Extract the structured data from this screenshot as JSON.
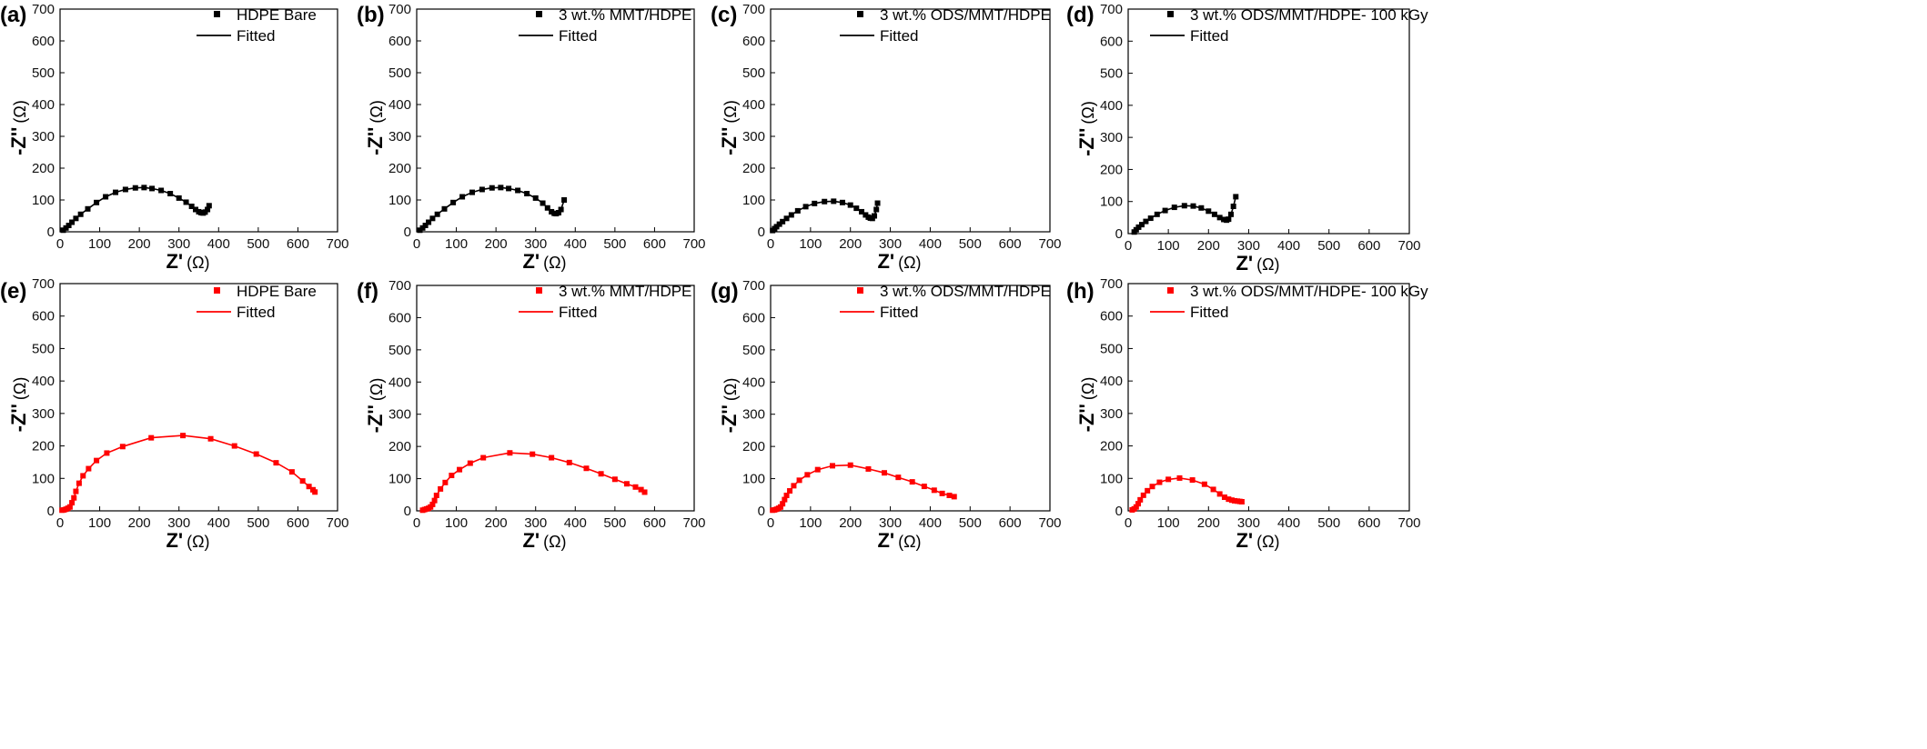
{
  "chart_data": [
    {
      "panel": "(a)",
      "type": "scatter",
      "color": "#000000",
      "marker": "square",
      "xlabel": "Z'",
      "ylabel": "-Z''",
      "unit": "(Ω)",
      "xlim": [
        0,
        700
      ],
      "ylim": [
        0,
        700
      ],
      "xticks": [
        "0",
        "100",
        "200",
        "300",
        "400",
        "500",
        "600",
        "700"
      ],
      "yticks": [
        "0",
        "100",
        "200",
        "300",
        "400",
        "500",
        "600",
        "700"
      ],
      "legend": [
        "HDPE Bare",
        "Fitted"
      ],
      "x": [
        8,
        15,
        22,
        30,
        40,
        52,
        70,
        92,
        115,
        140,
        165,
        190,
        212,
        232,
        255,
        278,
        300,
        318,
        332,
        342,
        350,
        356,
        361,
        366,
        372,
        376
      ],
      "y": [
        5,
        12,
        20,
        30,
        42,
        55,
        72,
        92,
        110,
        124,
        133,
        138,
        139,
        136,
        130,
        120,
        106,
        93,
        80,
        70,
        63,
        60,
        59,
        62,
        70,
        82
      ]
    },
    {
      "panel": "(b)",
      "type": "scatter",
      "color": "#000000",
      "marker": "square",
      "xlabel": "Z'",
      "ylabel": "-Z''",
      "unit": "(Ω)",
      "xlim": [
        0,
        700
      ],
      "ylim": [
        0,
        700
      ],
      "xticks": [
        "0",
        "100",
        "200",
        "300",
        "400",
        "500",
        "600",
        "700"
      ],
      "yticks": [
        "0",
        "100",
        "200",
        "300",
        "400",
        "500",
        "600",
        "700"
      ],
      "legend": [
        "3 wt.% MMT/HDPE",
        "Fitted"
      ],
      "x": [
        8,
        15,
        22,
        30,
        40,
        52,
        70,
        92,
        115,
        140,
        165,
        190,
        212,
        232,
        255,
        278,
        300,
        318,
        330,
        340,
        347,
        352,
        358,
        364,
        372
      ],
      "y": [
        5,
        12,
        20,
        30,
        42,
        55,
        72,
        92,
        110,
        124,
        133,
        138,
        139,
        136,
        130,
        120,
        106,
        90,
        75,
        63,
        58,
        57,
        60,
        70,
        100
      ]
    },
    {
      "panel": "(c)",
      "type": "scatter",
      "color": "#000000",
      "marker": "square",
      "xlabel": "Z'",
      "ylabel": "-Z''",
      "unit": "(Ω)",
      "xlim": [
        0,
        700
      ],
      "ylim": [
        0,
        700
      ],
      "xticks": [
        "0",
        "100",
        "200",
        "300",
        "400",
        "500",
        "600",
        "700"
      ],
      "yticks": [
        "0",
        "100",
        "200",
        "300",
        "400",
        "500",
        "600",
        "700"
      ],
      "legend": [
        "3 wt.% ODS/MMT/HDPE",
        "Fitted"
      ],
      "x": [
        5,
        10,
        15,
        22,
        30,
        40,
        52,
        68,
        88,
        110,
        135,
        158,
        180,
        200,
        215,
        228,
        238,
        245,
        250,
        255,
        260,
        265,
        268
      ],
      "y": [
        4,
        10,
        16,
        24,
        32,
        42,
        53,
        66,
        79,
        89,
        95,
        96,
        92,
        84,
        74,
        63,
        53,
        46,
        43,
        42,
        50,
        70,
        90
      ]
    },
    {
      "panel": "(d)",
      "type": "scatter",
      "color": "#000000",
      "marker": "square",
      "xlabel": "Z'",
      "ylabel": "-Z''",
      "unit": "(Ω)",
      "xlim": [
        0,
        700
      ],
      "ylim": [
        0,
        700
      ],
      "xticks": [
        "0",
        "100",
        "200",
        "300",
        "400",
        "500",
        "600",
        "700"
      ],
      "yticks": [
        "0",
        "100",
        "200",
        "300",
        "400",
        "500",
        "600",
        "700"
      ],
      "legend": [
        "3 wt.% ODS/MMT/HDPE- 100 kGy",
        "Fitted"
      ],
      "x": [
        15,
        20,
        26,
        34,
        44,
        56,
        72,
        92,
        115,
        140,
        162,
        182,
        200,
        215,
        228,
        238,
        245,
        250,
        256,
        262,
        268
      ],
      "y": [
        5,
        12,
        20,
        28,
        38,
        48,
        60,
        72,
        82,
        87,
        86,
        80,
        70,
        60,
        50,
        44,
        42,
        45,
        60,
        85,
        115
      ]
    },
    {
      "panel": "(e)",
      "type": "scatter",
      "color": "#ff0000",
      "marker": "square",
      "xlabel": "Z'",
      "ylabel": "-Z''",
      "unit": "(Ω)",
      "xlim": [
        0,
        700
      ],
      "ylim": [
        0,
        700
      ],
      "xticks": [
        "0",
        "100",
        "200",
        "300",
        "400",
        "500",
        "600",
        "700"
      ],
      "yticks": [
        "0",
        "100",
        "200",
        "300",
        "400",
        "500",
        "600",
        "700"
      ],
      "legend": [
        "HDPE Bare",
        "Fitted"
      ],
      "x": [
        5,
        10,
        15,
        20,
        25,
        30,
        35,
        40,
        48,
        58,
        72,
        92,
        118,
        158,
        230,
        310,
        380,
        440,
        495,
        545,
        585,
        612,
        628,
        638,
        643
      ],
      "y": [
        2,
        3,
        5,
        8,
        12,
        25,
        40,
        60,
        85,
        108,
        130,
        155,
        178,
        198,
        225,
        232,
        222,
        200,
        175,
        148,
        120,
        92,
        75,
        65,
        58
      ]
    },
    {
      "panel": "(f)",
      "type": "scatter",
      "color": "#ff0000",
      "marker": "square",
      "xlabel": "Z'",
      "ylabel": "-Z''",
      "unit": "(Ω)",
      "xlim": [
        0,
        700
      ],
      "ylim": [
        0,
        700
      ],
      "xticks": [
        "0",
        "100",
        "200",
        "300",
        "400",
        "500",
        "600",
        "700"
      ],
      "yticks": [
        "0",
        "100",
        "200",
        "300",
        "400",
        "500",
        "600",
        "700"
      ],
      "legend": [
        "3 wt.% MMT/HDPE",
        "Fitted"
      ],
      "x": [
        15,
        20,
        25,
        30,
        35,
        40,
        45,
        50,
        60,
        72,
        88,
        108,
        135,
        168,
        235,
        292,
        340,
        385,
        428,
        465,
        500,
        530,
        552,
        566,
        575
      ],
      "y": [
        2,
        4,
        6,
        8,
        12,
        20,
        32,
        48,
        68,
        88,
        110,
        128,
        148,
        165,
        180,
        176,
        165,
        150,
        132,
        115,
        98,
        84,
        74,
        66,
        58
      ]
    },
    {
      "panel": "(g)",
      "type": "scatter",
      "color": "#ff0000",
      "marker": "square",
      "xlabel": "Z'",
      "ylabel": "-Z''",
      "unit": "(Ω)",
      "xlim": [
        0,
        700
      ],
      "ylim": [
        0,
        700
      ],
      "xticks": [
        "0",
        "100",
        "200",
        "300",
        "400",
        "500",
        "600",
        "700"
      ],
      "yticks": [
        "0",
        "100",
        "200",
        "300",
        "400",
        "500",
        "600",
        "700"
      ],
      "legend": [
        "3 wt.% ODS/MMT/HDPE",
        "Fitted"
      ],
      "x": [
        5,
        10,
        15,
        20,
        25,
        30,
        35,
        40,
        48,
        58,
        72,
        92,
        118,
        155,
        200,
        245,
        285,
        320,
        355,
        385,
        410,
        430,
        448,
        460
      ],
      "y": [
        2,
        3,
        5,
        8,
        12,
        22,
        35,
        48,
        62,
        78,
        95,
        112,
        128,
        140,
        142,
        130,
        118,
        104,
        90,
        76,
        64,
        54,
        48,
        44
      ]
    },
    {
      "panel": "(h)",
      "type": "scatter",
      "color": "#ff0000",
      "marker": "square",
      "xlabel": "Z'",
      "ylabel": "-Z''",
      "unit": "(Ω)",
      "xlim": [
        0,
        700
      ],
      "ylim": [
        0,
        700
      ],
      "xticks": [
        "0",
        "100",
        "200",
        "300",
        "400",
        "500",
        "600",
        "700"
      ],
      "yticks": [
        "0",
        "100",
        "200",
        "300",
        "400",
        "500",
        "600",
        "700"
      ],
      "legend": [
        "3 wt.% ODS/MMT/HDPE- 100 kGy",
        "Fitted"
      ],
      "x": [
        10,
        15,
        20,
        25,
        30,
        38,
        48,
        60,
        78,
        100,
        128,
        160,
        190,
        212,
        228,
        240,
        250,
        258,
        265,
        272,
        278,
        283
      ],
      "y": [
        3,
        6,
        12,
        22,
        34,
        48,
        62,
        75,
        88,
        97,
        101,
        95,
        82,
        66,
        52,
        42,
        36,
        33,
        31,
        30,
        29,
        28
      ]
    }
  ]
}
